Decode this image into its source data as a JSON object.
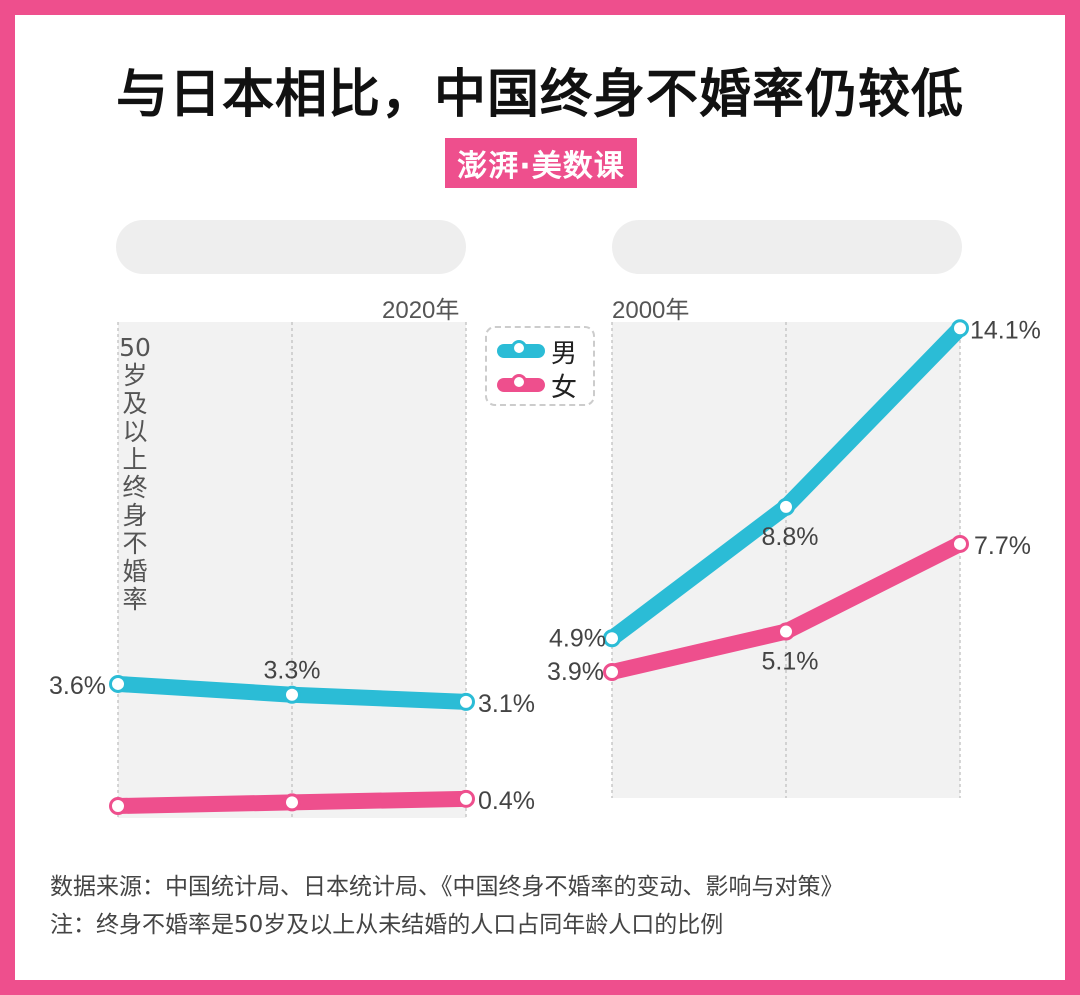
{
  "title": "与日本相比，中国终身不婚率仍较低",
  "brand": "澎湃·美数课",
  "legend": [
    {
      "name": "男",
      "color": "#2bbcd6"
    },
    {
      "name": "女",
      "color": "#ee4f8d"
    }
  ],
  "y_axis_label": "50岁及以上终身不婚率",
  "footnote": {
    "source": "数据来源：中国统计局、日本统计局、《中国终身不婚率的变动、影响与对策》",
    "note": "注：终身不婚率是50岁及以上从未结婚的人口占同年龄人口的比例"
  },
  "chart_data": [
    {
      "type": "line",
      "panel": "left",
      "title": "",
      "year_label": "2020年",
      "series": [
        {
          "name": "男",
          "color": "#2bbcd6",
          "values": [
            3.6,
            3.3,
            3.1
          ],
          "labels": [
            "3.6%",
            "3.3%",
            "3.1%"
          ]
        },
        {
          "name": "女",
          "color": "#ee4f8d",
          "values": [
            0.2,
            0.3,
            0.4
          ],
          "labels": [
            "",
            "",
            "0.4%"
          ]
        }
      ]
    },
    {
      "type": "line",
      "panel": "right",
      "title": "",
      "year_label": "2000年",
      "series": [
        {
          "name": "男",
          "color": "#2bbcd6",
          "values": [
            4.9,
            8.8,
            14.1
          ],
          "labels": [
            "4.9%",
            "8.8%",
            "14.1%"
          ]
        },
        {
          "name": "女",
          "color": "#ee4f8d",
          "values": [
            3.9,
            5.1,
            7.7
          ],
          "labels": [
            "3.9%",
            "5.1%",
            "7.7%"
          ]
        }
      ]
    }
  ]
}
